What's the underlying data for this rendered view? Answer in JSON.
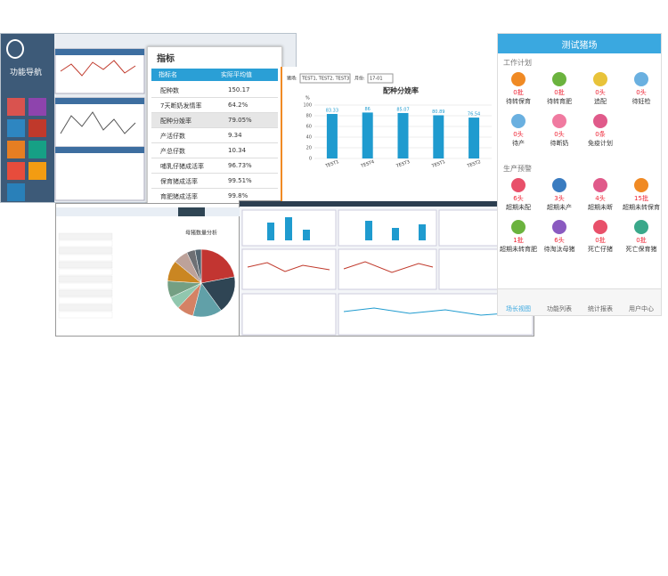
{
  "left_panel": {
    "title": "功能导航"
  },
  "indicator_table": {
    "title": "指标",
    "header": [
      "指标名",
      "实际平均值"
    ],
    "rows": [
      [
        "配种数",
        "150.17"
      ],
      [
        "7天断奶发情率",
        "64.2%"
      ],
      [
        "配种分娩率",
        "79.05%"
      ],
      [
        "产活仔数",
        "9.34"
      ],
      [
        "产总仔数",
        "10.34"
      ],
      [
        "哺乳仔猪成活率",
        "96.73%"
      ],
      [
        "保育猪成活率",
        "99.51%"
      ],
      [
        "育肥猪成活率",
        "99.8%"
      ]
    ]
  },
  "chart_data": [
    {
      "type": "bar",
      "title": "配种分娩率",
      "y_label": "%",
      "filter": {
        "farm_label": "猪场:",
        "farm_value": "TEST1, TEST2, TEST3",
        "month_label": "月份:",
        "month_value": "17-01"
      },
      "categories": [
        "TEST1",
        "TEST4",
        "TEST3",
        "TEST1",
        "TEST2"
      ],
      "values": [
        83.33,
        86,
        85.07,
        80.89,
        76.54
      ],
      "color": "#1f9bcf",
      "ylim": [
        0,
        100
      ],
      "yticks": [
        0,
        20,
        40,
        60,
        80,
        100
      ],
      "grid": true
    },
    {
      "type": "pie",
      "title": "母猪数量分析",
      "values": [
        22,
        18,
        14,
        8,
        6,
        8,
        10,
        7,
        4,
        3
      ],
      "colors": [
        "#c23531",
        "#2f4554",
        "#61a0a8",
        "#d48265",
        "#91c7ae",
        "#749f83",
        "#ca8622",
        "#bda29a",
        "#6e7074",
        "#546570"
      ]
    }
  ],
  "mobile_app": {
    "title": "测试猪场",
    "work_plan": {
      "title": "工作计划",
      "items": [
        {
          "count": "0批",
          "label": "待转保育",
          "color": "#f08a24"
        },
        {
          "count": "0批",
          "label": "待转育肥",
          "color": "#6bb33e"
        },
        {
          "count": "0头",
          "label": "追配",
          "color": "#e8c33a"
        },
        {
          "count": "0头",
          "label": "待妊检",
          "color": "#6ab0e0"
        },
        {
          "count": "0头",
          "label": "待产",
          "color": "#6ab0e0"
        },
        {
          "count": "0头",
          "label": "待断奶",
          "color": "#f07aa0"
        },
        {
          "count": "0条",
          "label": "免疫计划",
          "color": "#e05a8a"
        }
      ]
    },
    "warnings": {
      "title": "生产预警",
      "items": [
        {
          "count": "6头",
          "label": "超期未配",
          "color": "#e8506a"
        },
        {
          "count": "3头",
          "label": "超期未产",
          "color": "#3a7cc0"
        },
        {
          "count": "4头",
          "label": "超期未断",
          "color": "#e05a8a"
        },
        {
          "count": "15批",
          "label": "超期未转保育",
          "color": "#f08a24"
        },
        {
          "count": "1批",
          "label": "超期未转育肥",
          "color": "#6bb33e"
        },
        {
          "count": "6头",
          "label": "待淘汰母猪",
          "color": "#8a5ac0"
        },
        {
          "count": "0批",
          "label": "死亡仔猪",
          "color": "#e8506a"
        },
        {
          "count": "0批",
          "label": "死亡保育猪",
          "color": "#3aa88a"
        }
      ]
    },
    "nav": [
      "场长视图",
      "功能列表",
      "统计报表",
      "用户中心"
    ]
  }
}
